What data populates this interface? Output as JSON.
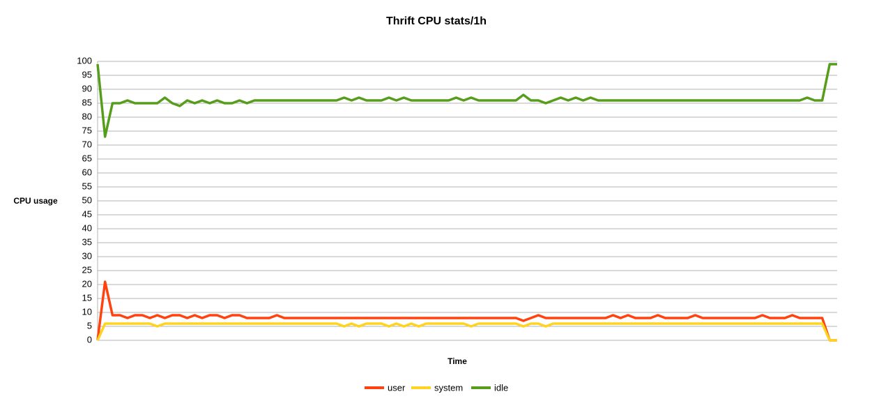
{
  "chart_data": {
    "type": "line",
    "title": "Thrift CPU stats/1h",
    "x_label": "Time",
    "y_label": "CPU usage",
    "ylim": [
      0,
      100
    ],
    "yticks": [
      0,
      5,
      10,
      15,
      20,
      25,
      30,
      35,
      40,
      45,
      50,
      55,
      60,
      65,
      70,
      75,
      80,
      85,
      90,
      95,
      100
    ],
    "grid": true,
    "legend": "bottom",
    "series": [
      {
        "name": "user",
        "color": "#ff420e",
        "values": [
          0,
          21,
          9,
          9,
          8,
          9,
          9,
          8,
          9,
          8,
          9,
          9,
          8,
          9,
          8,
          9,
          9,
          8,
          9,
          9,
          8,
          8,
          8,
          8,
          9,
          8,
          8,
          8,
          8,
          8,
          8,
          8,
          8,
          8,
          8,
          8,
          8,
          8,
          8,
          8,
          8,
          8,
          8,
          8,
          8,
          8,
          8,
          8,
          8,
          8,
          8,
          8,
          8,
          8,
          8,
          8,
          8,
          7,
          8,
          9,
          8,
          8,
          8,
          8,
          8,
          8,
          8,
          8,
          8,
          9,
          8,
          9,
          8,
          8,
          8,
          9,
          8,
          8,
          8,
          8,
          9,
          8,
          8,
          8,
          8,
          8,
          8,
          8,
          8,
          9,
          8,
          8,
          8,
          9,
          8,
          8,
          8,
          8,
          0,
          0
        ]
      },
      {
        "name": "system",
        "color": "#ffd320",
        "values": [
          0,
          6,
          6,
          6,
          6,
          6,
          6,
          6,
          5,
          6,
          6,
          6,
          6,
          6,
          6,
          6,
          6,
          6,
          6,
          6,
          6,
          6,
          6,
          6,
          6,
          6,
          6,
          6,
          6,
          6,
          6,
          6,
          6,
          5,
          6,
          5,
          6,
          6,
          6,
          5,
          6,
          5,
          6,
          5,
          6,
          6,
          6,
          6,
          6,
          6,
          5,
          6,
          6,
          6,
          6,
          6,
          6,
          5,
          6,
          6,
          5,
          6,
          6,
          6,
          6,
          6,
          6,
          6,
          6,
          6,
          6,
          6,
          6,
          6,
          6,
          6,
          6,
          6,
          6,
          6,
          6,
          6,
          6,
          6,
          6,
          6,
          6,
          6,
          6,
          6,
          6,
          6,
          6,
          6,
          6,
          6,
          6,
          6,
          0,
          0
        ]
      },
      {
        "name": "idle",
        "color": "#579d1c",
        "values": [
          99,
          73,
          85,
          85,
          86,
          85,
          85,
          85,
          85,
          87,
          85,
          84,
          86,
          85,
          86,
          85,
          86,
          85,
          85,
          86,
          85,
          86,
          86,
          86,
          86,
          86,
          86,
          86,
          86,
          86,
          86,
          86,
          86,
          87,
          86,
          87,
          86,
          86,
          86,
          87,
          86,
          87,
          86,
          86,
          86,
          86,
          86,
          86,
          87,
          86,
          87,
          86,
          86,
          86,
          86,
          86,
          86,
          88,
          86,
          86,
          85,
          86,
          87,
          86,
          87,
          86,
          87,
          86,
          86,
          86,
          86,
          86,
          86,
          86,
          86,
          86,
          86,
          86,
          86,
          86,
          86,
          86,
          86,
          86,
          86,
          86,
          86,
          86,
          86,
          86,
          86,
          86,
          86,
          86,
          86,
          87,
          86,
          86,
          99,
          99
        ]
      }
    ]
  }
}
